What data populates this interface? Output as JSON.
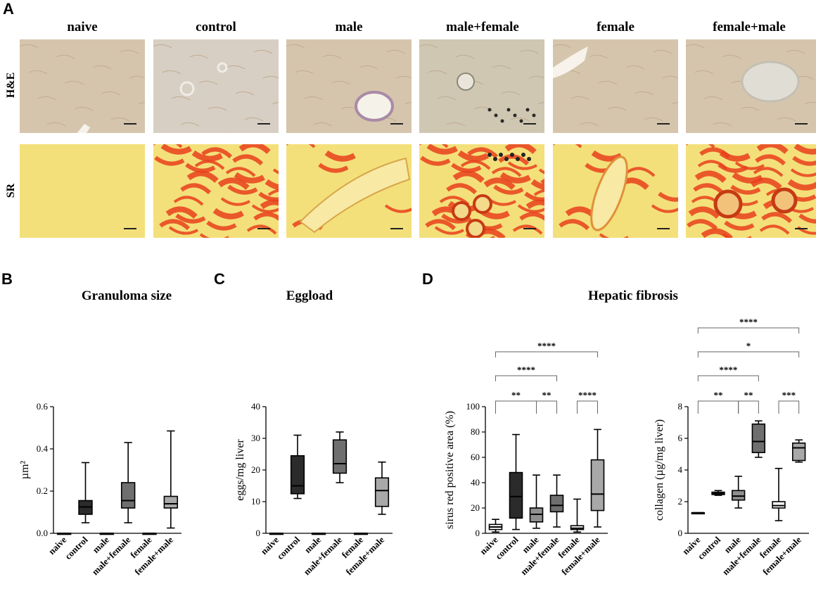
{
  "panel_letters": {
    "a": "A",
    "b": "B",
    "c": "C",
    "d": "D"
  },
  "groups": [
    "naive",
    "control",
    "male",
    "male+female",
    "female",
    "female+male"
  ],
  "row_labels": {
    "he": "H&E",
    "sr": "SR"
  },
  "titles": {
    "granuloma": "Granuloma size",
    "eggload": "Eggload",
    "fibrosis": "Hepatic fibrosis"
  },
  "colors": {
    "naive": "#ffffff",
    "control": "#2b2b2b",
    "male": "#8f8f8f",
    "male+female": "#6f6f6f",
    "female": "#ffffff",
    "female+male": "#a8a8a8",
    "he_tissue": "#d9cbb8",
    "sr_tissue": "#f3df6a",
    "sr_fiber": "#e8401c"
  },
  "chart_data": [
    {
      "type": "box",
      "title": "Granuloma size",
      "ylabel": "µm²",
      "ylim": [
        0,
        0.6
      ],
      "yticks": [
        "0.0",
        "0.2",
        "0.4",
        "0.6"
      ],
      "categories": [
        "naive",
        "control",
        "male",
        "male+female",
        "female",
        "female+male"
      ],
      "boxes": [
        {
          "min": 0,
          "q1": 0,
          "median": 0,
          "q3": 0,
          "max": 0
        },
        {
          "min": 0.05,
          "q1": 0.09,
          "median": 0.125,
          "q3": 0.155,
          "max": 0.335
        },
        {
          "min": 0,
          "q1": 0,
          "median": 0,
          "q3": 0,
          "max": 0
        },
        {
          "min": 0.05,
          "q1": 0.12,
          "median": 0.155,
          "q3": 0.24,
          "max": 0.43
        },
        {
          "min": 0,
          "q1": 0,
          "median": 0,
          "q3": 0,
          "max": 0
        },
        {
          "min": 0.025,
          "q1": 0.12,
          "median": 0.14,
          "q3": 0.175,
          "max": 0.485
        }
      ],
      "significance": []
    },
    {
      "type": "box",
      "title": "Eggload",
      "ylabel": "eggs/mg liver",
      "ylim": [
        0,
        40
      ],
      "yticks": [
        "0",
        "10",
        "20",
        "30",
        "40"
      ],
      "categories": [
        "naive",
        "control",
        "male",
        "male+female",
        "female",
        "female+male"
      ],
      "boxes": [
        {
          "min": 0,
          "q1": 0,
          "median": 0,
          "q3": 0,
          "max": 0
        },
        {
          "min": 11,
          "q1": 12.5,
          "median": 15,
          "q3": 24.5,
          "max": 31
        },
        {
          "min": 0,
          "q1": 0,
          "median": 0,
          "q3": 0,
          "max": 0
        },
        {
          "min": 16,
          "q1": 19,
          "median": 22,
          "q3": 29.5,
          "max": 32
        },
        {
          "min": 0,
          "q1": 0,
          "median": 0,
          "q3": 0,
          "max": 0
        },
        {
          "min": 6,
          "q1": 8.5,
          "median": 13.5,
          "q3": 17.5,
          "max": 22.5
        }
      ],
      "significance": []
    },
    {
      "type": "box",
      "title": "",
      "ylabel": "sirus red positive area (%)",
      "ylim": [
        0,
        100
      ],
      "yticks": [
        "0",
        "20",
        "40",
        "60",
        "80",
        "100"
      ],
      "categories": [
        "naive",
        "control",
        "male",
        "male+female",
        "female",
        "female+male"
      ],
      "boxes": [
        {
          "min": 1,
          "q1": 3,
          "median": 5,
          "q3": 7,
          "max": 11
        },
        {
          "min": 3,
          "q1": 12,
          "median": 29,
          "q3": 48,
          "max": 78
        },
        {
          "min": 4,
          "q1": 9,
          "median": 15,
          "q3": 20,
          "max": 46
        },
        {
          "min": 5,
          "q1": 17,
          "median": 22,
          "q3": 30,
          "max": 46
        },
        {
          "min": 1,
          "q1": 3,
          "median": 4,
          "q3": 6,
          "max": 27
        },
        {
          "min": 5,
          "q1": 18,
          "median": 31,
          "q3": 58,
          "max": 82
        }
      ],
      "significance": [
        {
          "from": 0,
          "to": 2,
          "label": "**",
          "level": 0
        },
        {
          "from": 2,
          "to": 3,
          "label": "**",
          "level": 0
        },
        {
          "from": 4,
          "to": 5,
          "label": "****",
          "level": 0
        },
        {
          "from": 0,
          "to": 3,
          "label": "****",
          "level": 1
        },
        {
          "from": 0,
          "to": 5,
          "label": "****",
          "level": 2
        }
      ]
    },
    {
      "type": "box",
      "title": "",
      "ylabel": "collagen (µg/mg liver)",
      "ylim": [
        0,
        8
      ],
      "yticks": [
        "0",
        "2",
        "4",
        "6",
        "8"
      ],
      "categories": [
        "naive",
        "control",
        "male",
        "male+female",
        "female",
        "female+male"
      ],
      "boxes": [
        {
          "min": 1.3,
          "q1": 1.3,
          "median": 1.3,
          "q3": 1.3,
          "max": 1.3
        },
        {
          "min": 2.4,
          "q1": 2.45,
          "median": 2.5,
          "q3": 2.6,
          "max": 2.7
        },
        {
          "min": 1.6,
          "q1": 2.1,
          "median": 2.35,
          "q3": 2.7,
          "max": 3.6
        },
        {
          "min": 4.8,
          "q1": 5.1,
          "median": 5.8,
          "q3": 6.9,
          "max": 7.1
        },
        {
          "min": 0.8,
          "q1": 1.6,
          "median": 1.75,
          "q3": 2.0,
          "max": 4.1
        },
        {
          "min": 4.5,
          "q1": 4.6,
          "median": 5.4,
          "q3": 5.7,
          "max": 5.9
        }
      ],
      "significance": [
        {
          "from": 0,
          "to": 2,
          "label": "**",
          "level": 0
        },
        {
          "from": 2,
          "to": 3,
          "label": "**",
          "level": 0
        },
        {
          "from": 4,
          "to": 5,
          "label": "***",
          "level": 0
        },
        {
          "from": 0,
          "to": 3,
          "label": "****",
          "level": 1
        },
        {
          "from": 0,
          "to": 5,
          "label": "*",
          "level": 2
        },
        {
          "from": 0,
          "to": 5,
          "label": "****",
          "level": 3
        }
      ]
    }
  ]
}
